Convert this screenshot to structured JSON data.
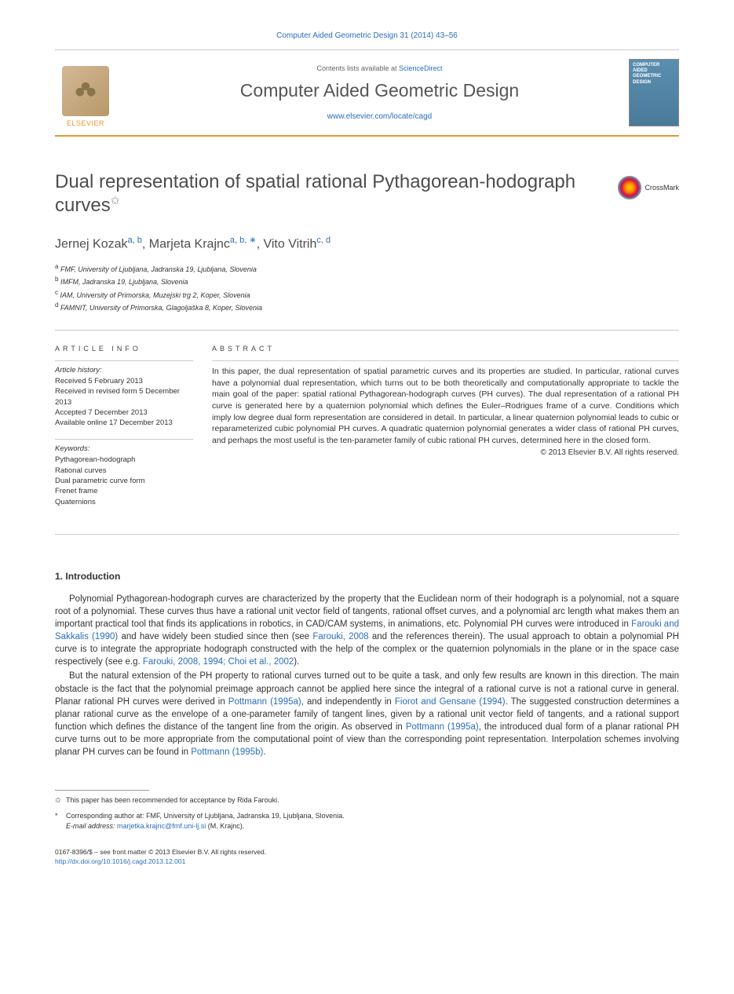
{
  "header": {
    "citation": "Computer Aided Geometric Design 31 (2014) 43–56",
    "contents_prefix": "Contents lists available at ",
    "contents_link": "ScienceDirect",
    "journal_name": "Computer Aided Geometric Design",
    "journal_link": "www.elsevier.com/locate/cagd",
    "elsevier_label": "ELSEVIER",
    "cover_text": "COMPUTER AIDED GEOMETRIC DESIGN"
  },
  "title": {
    "text": "Dual representation of spatial rational Pythagorean-hodograph curves",
    "note_sym": "✩",
    "crossmark_label": "CrossMark"
  },
  "authors": {
    "a1_name": "Jernej Kozak",
    "a1_aff": "a, b",
    "a2_name": "Marjeta Krajnc",
    "a2_aff": "a, b, ∗",
    "a3_name": "Vito Vitrih",
    "a3_aff": "c, d"
  },
  "affiliations": {
    "a": "FMF, University of Ljubljana, Jadranska 19, Ljubljana, Slovenia",
    "b": "IMFM, Jadranska 19, Ljubljana, Slovenia",
    "c": "IAM, University of Primorska, Muzejski trg 2, Koper, Slovenia",
    "d": "FAMNIT, University of Primorska, Glagoljaška 8, Koper, Slovenia"
  },
  "info": {
    "heading": "ARTICLE INFO",
    "history_label": "Article history:",
    "history_l1": "Received 5 February 2013",
    "history_l2": "Received in revised form 5 December 2013",
    "history_l3": "Accepted 7 December 2013",
    "history_l4": "Available online 17 December 2013",
    "keywords_label": "Keywords:",
    "kw1": "Pythagorean-hodograph",
    "kw2": "Rational curves",
    "kw3": "Dual parametric curve form",
    "kw4": "Frenet frame",
    "kw5": "Quaternions"
  },
  "abstract": {
    "heading": "ABSTRACT",
    "text": "In this paper, the dual representation of spatial parametric curves and its properties are studied. In particular, rational curves have a polynomial dual representation, which turns out to be both theoretically and computationally appropriate to tackle the main goal of the paper: spatial rational Pythagorean-hodograph curves (PH curves). The dual representation of a rational PH curve is generated here by a quaternion polynomial which defines the Euler–Rodrigues frame of a curve. Conditions which imply low degree dual form representation are considered in detail. In particular, a linear quaternion polynomial leads to cubic or reparameterized cubic polynomial PH curves. A quadratic quaternion polynomial generates a wider class of rational PH curves, and perhaps the most useful is the ten-parameter family of cubic rational PH curves, determined here in the closed form.",
    "copyright": "© 2013 Elsevier B.V. All rights reserved."
  },
  "body": {
    "section_num": "1.",
    "section_title": "Introduction",
    "para1_pre": "Polynomial Pythagorean-hodograph curves are characterized by the property that the Euclidean norm of their hodograph is a polynomial, not a square root of a polynomial. These curves thus have a rational unit vector field of tangents, rational offset curves, and a polynomial arc length what makes them an important practical tool that finds its applications in robotics, in CAD/CAM systems, in animations, etc. Polynomial PH curves were introduced in ",
    "para1_ref1": "Farouki and Sakkalis (1990)",
    "para1_mid1": " and have widely been studied since then (see ",
    "para1_ref2": "Farouki, 2008",
    "para1_mid2": " and the references therein). The usual approach to obtain a polynomial PH curve is to integrate the appropriate hodograph constructed with the help of the complex or the quaternion polynomials in the plane or in the space case respectively (see e.g. ",
    "para1_ref3": "Farouki, 2008, 1994; Choi et al., 2002",
    "para1_end": ").",
    "para2_pre": "But the natural extension of the PH property to rational curves turned out to be quite a task, and only few results are known in this direction. The main obstacle is the fact that the polynomial preimage approach cannot be applied here since the integral of a rational curve is not a rational curve in general. Planar rational PH curves were derived in ",
    "para2_ref1": "Pottmann (1995a)",
    "para2_mid1": ", and independently in ",
    "para2_ref2": "Fiorot and Gensane (1994)",
    "para2_mid2": ". The suggested construction determines a planar rational curve as the envelope of a one-parameter family of tangent lines, given by a rational unit vector field of tangents, and a rational support function which defines the distance of the tangent line from the origin. As observed in ",
    "para2_ref3": "Pottmann (1995a)",
    "para2_mid3": ", the introduced dual form of a planar rational PH curve turns out to be more appropriate from the computational point of view than the corresponding point representation. Interpolation schemes involving planar PH curves can be found in ",
    "para2_ref4": "Pottmann (1995b)",
    "para2_end": "."
  },
  "footnotes": {
    "fn1_sym": "✩",
    "fn1_text": "This paper has been recommended for acceptance by Rida Farouki.",
    "fn2_sym": "*",
    "fn2_text": "Corresponding author at: FMF, University of Ljubljana, Jadranska 19, Ljubljana, Slovenia.",
    "email_label": "E-mail address:",
    "email": "marjetka.krajnc@fmf.uni-lj.si",
    "email_who": "(M. Krajnc)."
  },
  "bottom": {
    "issn": "0167-8396/$ – see front matter © 2013 Elsevier B.V. All rights reserved.",
    "doi": "http://dx.doi.org/10.1016/j.cagd.2013.12.001"
  },
  "colors": {
    "link": "#2a6ebb",
    "accent": "#e8952f",
    "text": "#333333",
    "heading": "#4d4d4d"
  }
}
